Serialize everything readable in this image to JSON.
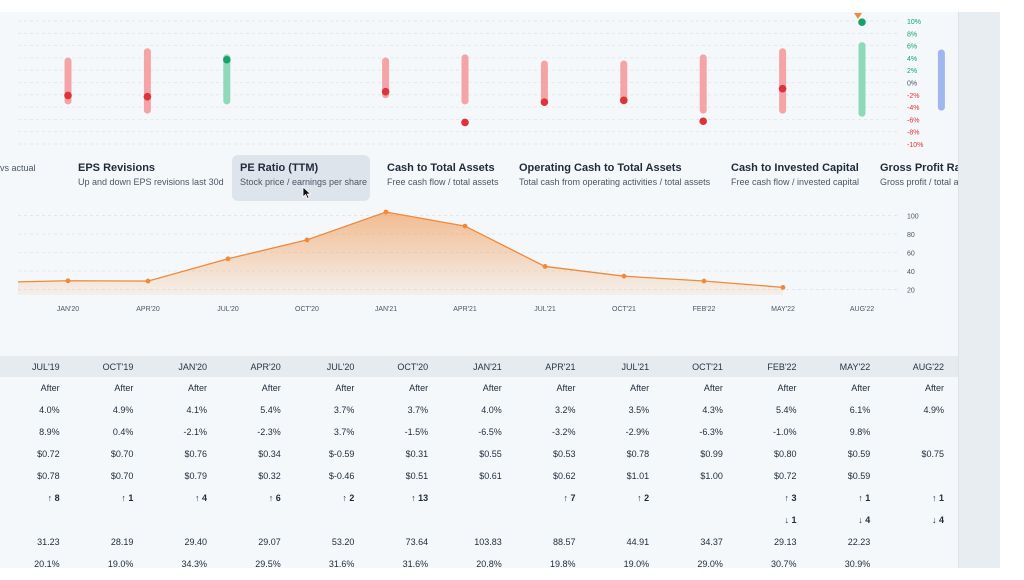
{
  "colors": {
    "accent": "#f08a3a",
    "positive": "#15a36a",
    "negative": "#e0323b",
    "bar_red": "#f4a3a6",
    "bar_green": "#8fd9bb",
    "bar_blue": "#9fb7ee"
  },
  "revision_axis": [
    "10%",
    "8%",
    "6%",
    "4%",
    "2%",
    "0%",
    "-2%",
    "-4%",
    "-6%",
    "-8%",
    "-10%"
  ],
  "metric_tabs": [
    {
      "title": "",
      "subtitle": "vs actual"
    },
    {
      "title": "EPS Revisions",
      "subtitle": "Up and down EPS revisions last 30d"
    },
    {
      "title": "PE Ratio (TTM)",
      "subtitle": "Stock price / earnings per share"
    },
    {
      "title": "Cash to Total Assets",
      "subtitle": "Free cash flow / total assets"
    },
    {
      "title": "Operating Cash to Total Assets",
      "subtitle": "Total cash from operating activities / total assets"
    },
    {
      "title": "Cash to Invested Capital",
      "subtitle": "Free cash flow / invested capital"
    },
    {
      "title": "Gross Profit Ratio",
      "subtitle": "Gross profit / total a"
    }
  ],
  "chart_data": [
    {
      "type": "scatter",
      "description_kind": "range-bars-with-points",
      "categories": [
        "JUL'19",
        "OCT'19",
        "JAN'20",
        "APR'20",
        "JUL'20",
        "OCT'20",
        "JAN'21",
        "APR'21",
        "JUL'21",
        "OCT'21",
        "FEB'22",
        "MAY'22",
        "AUG'22"
      ],
      "ranges": [
        [
          -3,
          3.5
        ],
        [
          -4.5,
          5
        ],
        [
          -3,
          4
        ],
        null,
        [
          -2,
          3.5
        ],
        [
          -3,
          4
        ],
        [
          -3,
          3
        ],
        [
          -3,
          3
        ],
        [
          -4.5,
          4
        ],
        [
          -4.5,
          5
        ],
        [
          -5,
          6
        ],
        [
          -4,
          4.8
        ],
        null
      ],
      "range_colors": [
        "red",
        "red",
        "green",
        null,
        "red",
        "red",
        "red",
        "red",
        "red",
        "red",
        "green",
        "blue",
        null
      ],
      "points": [
        -2.1,
        -2.3,
        3.7,
        null,
        -1.5,
        -6.5,
        -3.2,
        -2.9,
        -6.3,
        -1.0,
        9.8,
        null,
        null
      ],
      "point_colors": [
        "red",
        "red",
        "green",
        null,
        "red",
        "red",
        "red",
        "red",
        "red",
        "red",
        "green",
        null,
        null
      ],
      "ylim": [
        -10,
        10
      ],
      "ytick_labels": [
        "10%",
        "8%",
        "6%",
        "4%",
        "2%",
        "0%",
        "-2%",
        "-4%",
        "-6%",
        "-8%",
        "-10%"
      ]
    },
    {
      "type": "area",
      "x": [
        "",
        "JAN'20",
        "APR'20",
        "JUL'20",
        "OCT'20",
        "JAN'21",
        "APR'21",
        "JUL'21",
        "OCT'21",
        "FEB'22",
        "MAY'22"
      ],
      "values": [
        28.19,
        29.4,
        29.07,
        53.2,
        73.64,
        103.83,
        88.57,
        44.91,
        34.37,
        29.13,
        22.23
      ],
      "xtick_labels": [
        "JAN'20",
        "APR'20",
        "JUL'20",
        "OCT'20",
        "JAN'21",
        "APR'21",
        "JUL'21",
        "OCT'21",
        "FEB'22",
        "MAY'22",
        "AUG'22"
      ],
      "ytick_labels": [
        "100",
        "80",
        "60",
        "40",
        "20"
      ],
      "ylim": [
        14,
        106
      ]
    }
  ],
  "table": {
    "headers": [
      "JUL'19",
      "OCT'19",
      "JAN'20",
      "APR'20",
      "JUL'20",
      "OCT'20",
      "JAN'21",
      "APR'21",
      "JUL'21",
      "OCT'21",
      "FEB'22",
      "MAY'22",
      "AUG'22"
    ],
    "rows": [
      [
        "After",
        "After",
        "After",
        "After",
        "After",
        "After",
        "After",
        "After",
        "After",
        "After",
        "After",
        "After",
        "After"
      ],
      [
        "4.0%",
        "4.9%",
        "4.1%",
        "5.4%",
        "3.7%",
        "3.7%",
        "4.0%",
        "3.2%",
        "3.5%",
        "4.3%",
        "5.4%",
        "6.1%",
        "4.9%"
      ],
      [
        "8.9%",
        "0.4%",
        "-2.1%",
        "-2.3%",
        "3.7%",
        "-1.5%",
        "-6.5%",
        "-3.2%",
        "-2.9%",
        "-6.3%",
        "-1.0%",
        "9.8%",
        ""
      ],
      [
        "$0.72",
        "$0.70",
        "$0.76",
        "$0.34",
        "$-0.59",
        "$0.31",
        "$0.55",
        "$0.53",
        "$0.78",
        "$0.99",
        "$0.80",
        "$0.59",
        "$0.75"
      ],
      [
        "$0.78",
        "$0.70",
        "$0.79",
        "$0.32",
        "$-0.46",
        "$0.51",
        "$0.61",
        "$0.62",
        "$1.01",
        "$1.00",
        "$0.72",
        "$0.59",
        ""
      ],
      [
        "↑ 8",
        "↑ 1",
        "↑ 4",
        "↑ 6",
        "↑ 2",
        "↑ 13",
        "",
        "↑ 7",
        "↑ 2",
        "",
        "↑ 3",
        "↑ 1",
        "↑ 1"
      ],
      [
        "",
        "",
        "",
        "",
        "",
        "",
        "",
        "",
        "",
        "",
        "↓ 1",
        "↓ 4",
        "↓ 4"
      ],
      [
        "31.23",
        "28.19",
        "29.40",
        "29.07",
        "53.20",
        "73.64",
        "103.83",
        "88.57",
        "44.91",
        "34.37",
        "29.13",
        "22.23",
        ""
      ],
      [
        "20.1%",
        "19.0%",
        "34.3%",
        "29.5%",
        "31.6%",
        "31.6%",
        "20.8%",
        "19.8%",
        "19.0%",
        "29.0%",
        "30.7%",
        "30.9%",
        ""
      ]
    ],
    "row_styles": [
      "plain",
      "plain",
      "signed",
      "plain",
      "color",
      "arrows-up",
      "arrows-down",
      "plain",
      "plain"
    ],
    "color_row_tones": [
      "pos",
      "plain",
      "pos",
      "neg",
      "pos",
      "pos",
      "pos",
      "pos",
      "pos",
      "pos",
      "neg",
      "plain",
      ""
    ]
  }
}
